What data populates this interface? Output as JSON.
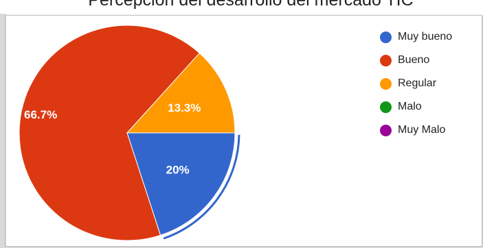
{
  "chart_data": {
    "type": "pie",
    "title": "Percepción del desarrollo del mercado TIC",
    "legend_position": "right",
    "slices": [
      {
        "name": "Muy bueno",
        "value": 20,
        "label": "20%",
        "color": "#3366cc",
        "selected": true
      },
      {
        "name": "Bueno",
        "value": 66.7,
        "label": "66.7%",
        "color": "#dc3912",
        "selected": false
      },
      {
        "name": "Regular",
        "value": 13.3,
        "label": "13.3%",
        "color": "#ff9900",
        "selected": false
      },
      {
        "name": "Malo",
        "value": 0,
        "label": "",
        "color": "#109618",
        "selected": false
      },
      {
        "name": "Muy Malo",
        "value": 0,
        "label": "",
        "color": "#990099",
        "selected": false
      }
    ]
  }
}
